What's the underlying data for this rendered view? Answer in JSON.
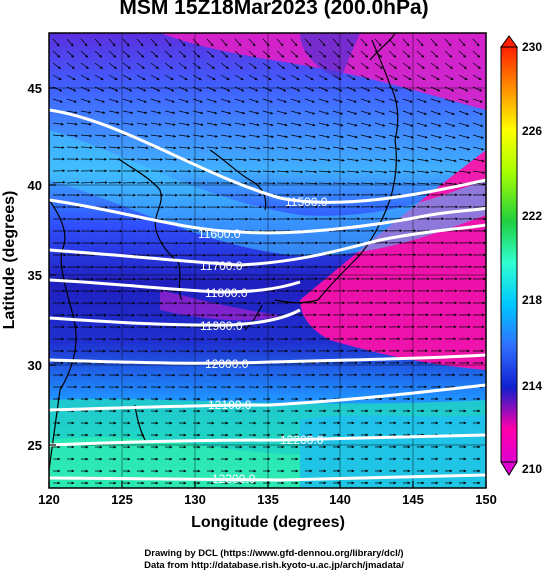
{
  "title": "MSM 15Z18Mar2023 (200.0hPa)",
  "x_axis": {
    "label": "Longitude (degrees)",
    "ticks": [
      "120",
      "125",
      "130",
      "135",
      "140",
      "145",
      "150"
    ],
    "range": [
      120,
      150
    ]
  },
  "y_axis": {
    "label": "Latitude  (degrees)",
    "ticks": [
      "25",
      "30",
      "35",
      "40",
      "45"
    ],
    "range": [
      22.6,
      47.8
    ]
  },
  "colorbar": {
    "ticks": [
      "210",
      "214",
      "218",
      "222",
      "226",
      "230"
    ],
    "range": [
      209,
      231
    ],
    "colors": [
      "#e000d0",
      "#ff00aa",
      "#1020d0",
      "#3070ff",
      "#00c8ff",
      "#30ffd0",
      "#20d040",
      "#a8ff00",
      "#ffff00",
      "#ff9000",
      "#ff2000"
    ]
  },
  "contours": [
    {
      "label": "11500.0"
    },
    {
      "label": "11600.0"
    },
    {
      "label": "11700.0"
    },
    {
      "label": "11800.0"
    },
    {
      "label": "11900.0"
    },
    {
      "label": "12000.0"
    },
    {
      "label": "12100.0"
    },
    {
      "label": "12200.0"
    },
    {
      "label": "12300.0"
    }
  ],
  "credits": {
    "line1": "Drawing by DCL (https://www.gfd-dennou.org/library/dcl/)",
    "line2": "Data from http://database.rish.kyoto-u.ac.jp/arch/jmadata/"
  }
}
